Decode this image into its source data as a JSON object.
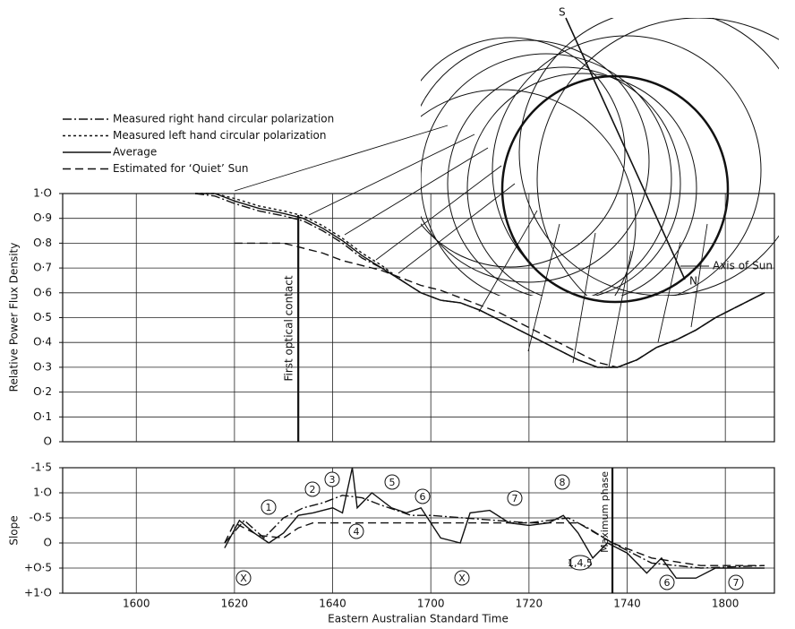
{
  "chart_data": [
    {
      "type": "line",
      "y_label": "Relative Power Flux Density",
      "x": [
        1612,
        1616,
        1620,
        1625,
        1630,
        1634,
        1638,
        1642,
        1646,
        1650,
        1654,
        1658,
        1702,
        1706,
        1710,
        1714,
        1718,
        1722,
        1726,
        1730,
        1734,
        1738,
        1742,
        1746,
        1750,
        1754,
        1758,
        1802,
        1806,
        1808
      ],
      "xlim": [
        1545,
        1810
      ],
      "ylim": [
        0,
        1.0
      ],
      "yticks": [
        {
          "value": 0,
          "label": "O"
        },
        {
          "value": 0.1,
          "label": "O·1"
        },
        {
          "value": 0.2,
          "label": "O·2"
        },
        {
          "value": 0.3,
          "label": "O·3"
        },
        {
          "value": 0.4,
          "label": "O·4"
        },
        {
          "value": 0.5,
          "label": "O·5"
        },
        {
          "value": 0.6,
          "label": "O·6"
        },
        {
          "value": 0.7,
          "label": "O·7"
        },
        {
          "value": 0.8,
          "label": "O·8"
        },
        {
          "value": 0.9,
          "label": "O·9"
        },
        {
          "value": 1.0,
          "label": "1·O"
        }
      ],
      "grid": true,
      "series": [
        {
          "name": "Measured right hand circular polarization",
          "style": "dash-dot",
          "color": "#111111",
          "values": [
            1.0,
            0.99,
            0.96,
            0.93,
            0.91,
            0.89,
            0.85,
            0.8,
            0.74,
            0.7,
            0.65,
            0.6,
            0.57,
            0.56,
            0.53,
            0.49,
            0.45,
            0.41,
            0.37,
            0.33,
            0.3,
            0.3,
            0.33,
            0.38,
            0.41,
            0.45,
            0.5,
            0.54,
            0.58,
            0.6
          ]
        },
        {
          "name": "Measured left hand circular polarization",
          "style": "dotted",
          "color": "#111111",
          "values": [
            1.0,
            1.0,
            0.98,
            0.95,
            0.93,
            0.91,
            0.87,
            0.82,
            0.76,
            0.71,
            0.65,
            0.6,
            0.57,
            0.56,
            0.53,
            0.49,
            0.45,
            0.41,
            0.37,
            0.33,
            0.3,
            0.3,
            0.33,
            0.38,
            0.41,
            0.45,
            0.5,
            0.54,
            0.58,
            0.6
          ]
        },
        {
          "name": "Average",
          "style": "solid",
          "color": "#111111",
          "values": [
            1.0,
            1.0,
            0.97,
            0.94,
            0.92,
            0.9,
            0.86,
            0.81,
            0.75,
            0.7,
            0.65,
            0.6,
            0.57,
            0.56,
            0.53,
            0.49,
            0.45,
            0.41,
            0.37,
            0.33,
            0.3,
            0.3,
            0.33,
            0.38,
            0.41,
            0.45,
            0.5,
            0.54,
            0.58,
            0.6
          ]
        },
        {
          "name": "Estimated for ‘Quiet’ Sun",
          "style": "dashed",
          "color": "#111111",
          "values": [
            null,
            null,
            0.8,
            0.8,
            0.8,
            0.78,
            0.76,
            0.73,
            0.71,
            0.69,
            0.66,
            0.63,
            0.61,
            0.58,
            0.55,
            0.52,
            0.48,
            0.44,
            0.4,
            0.36,
            0.32,
            0.3,
            0.33,
            0.38,
            0.41,
            0.45,
            0.5,
            0.54,
            0.58,
            0.6
          ]
        }
      ],
      "events": [
        {
          "label": "First optical contact",
          "x": 1633
        }
      ],
      "annotations": [
        "S",
        "N",
        "Axis of Sun"
      ]
    },
    {
      "type": "line",
      "y_label": "Slope",
      "x_label": "Eastern Australian Standard Time",
      "xlim": [
        1545,
        1810
      ],
      "xticks": [
        1600,
        1620,
        1640,
        1700,
        1720,
        1740,
        1800
      ],
      "ylim": [
        1.0,
        -1.5
      ],
      "yticks": [
        {
          "value": -1.5,
          "label": "-1·5"
        },
        {
          "value": -1.0,
          "label": "1·O"
        },
        {
          "value": -0.5,
          "label": "-O·5"
        },
        {
          "value": 0,
          "label": "O"
        },
        {
          "value": 0.5,
          "label": "+O·5"
        },
        {
          "value": 1.0,
          "label": "+1·O"
        }
      ],
      "grid": true,
      "series": [
        {
          "style": "solid",
          "color": "#111111",
          "x": [
            1618,
            1621,
            1624,
            1627,
            1630,
            1633,
            1636,
            1640,
            1642,
            1644,
            1645,
            1648,
            1652,
            1655,
            1658,
            1702,
            1706,
            1708,
            1712,
            1716,
            1720,
            1724,
            1727,
            1730,
            1733,
            1736,
            1740,
            1744,
            1747,
            1750,
            1754,
            1758,
            1808
          ],
          "values": [
            0.1,
            -0.45,
            -0.2,
            0.0,
            -0.2,
            -0.55,
            -0.6,
            -0.7,
            -0.6,
            -1.5,
            -0.7,
            -1.0,
            -0.7,
            -0.6,
            -0.7,
            -0.1,
            0.0,
            -0.6,
            -0.65,
            -0.4,
            -0.35,
            -0.4,
            -0.55,
            -0.2,
            0.3,
            0.0,
            0.2,
            0.6,
            0.3,
            0.7,
            0.7,
            0.5,
            0.5
          ]
        },
        {
          "style": "dash-dot",
          "color": "#111111",
          "x": [
            1618,
            1622,
            1626,
            1630,
            1634,
            1638,
            1642,
            1646,
            1650,
            1656,
            1700,
            1720,
            1728,
            1732,
            1737,
            1745,
            1755,
            1808
          ],
          "values": [
            0.0,
            -0.45,
            -0.1,
            -0.5,
            -0.7,
            -0.8,
            -0.95,
            -0.9,
            -0.75,
            -0.55,
            -0.55,
            -0.4,
            -0.5,
            -0.3,
            0.0,
            0.4,
            0.5,
            0.45
          ]
        },
        {
          "style": "dashed",
          "color": "#111111",
          "x": [
            1618,
            1620,
            1625,
            1630,
            1633,
            1636,
            1700,
            1730,
            1737,
            1745,
            1755,
            1808
          ],
          "values": [
            0.0,
            -0.4,
            -0.15,
            -0.1,
            -0.3,
            -0.4,
            -0.4,
            -0.4,
            0.0,
            0.3,
            0.45,
            0.45
          ]
        }
      ],
      "events": [
        {
          "label": "Maximum phase",
          "x": 1737
        }
      ],
      "markers": [
        "X",
        "1",
        "2",
        "3",
        "4",
        "5",
        "6",
        "X",
        "7",
        "8",
        "1,4,5",
        "6",
        "7"
      ]
    }
  ]
}
